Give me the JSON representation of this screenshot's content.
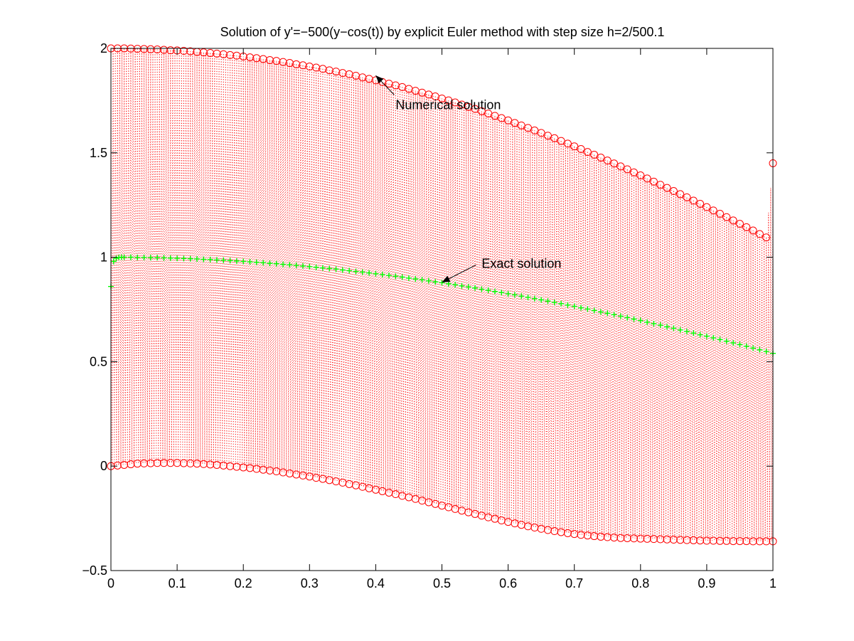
{
  "chart_data": {
    "type": "scatter",
    "title": "Solution of y'=−500(y−cos(t)) by explicit Euler method with step size h=2/500.1",
    "xlabel": "",
    "ylabel": "",
    "xlim": [
      0,
      1
    ],
    "ylim": [
      -0.5,
      2
    ],
    "xticks": [
      0,
      0.1,
      0.2,
      0.3,
      0.4,
      0.5,
      0.6,
      0.7,
      0.8,
      0.9,
      1
    ],
    "xtick_labels": [
      "0",
      "0.1",
      "0.2",
      "0.3",
      "0.4",
      "0.5",
      "0.6",
      "0.7",
      "0.8",
      "0.9",
      "1"
    ],
    "yticks": [
      -0.5,
      0,
      0.5,
      1,
      1.5,
      2
    ],
    "ytick_labels": [
      "−0.5",
      "0",
      "0.5",
      "1",
      "1.5",
      "2"
    ],
    "grid": false,
    "legend": "none",
    "series": [
      {
        "name": "Numerical solution",
        "marker": "circle",
        "line": "dotted",
        "color": "#ff0000",
        "x": [
          0,
          0.01,
          0.02,
          0.03,
          0.04,
          0.05,
          0.06,
          0.07,
          0.08,
          0.09,
          0.1,
          0.11,
          0.12,
          0.13,
          0.14,
          0.15,
          0.16,
          0.17,
          0.18,
          0.19,
          0.2,
          0.21,
          0.22,
          0.23,
          0.24,
          0.25,
          0.26,
          0.27,
          0.28,
          0.29,
          0.3,
          0.31,
          0.32,
          0.33,
          0.34,
          0.35,
          0.36,
          0.37,
          0.38,
          0.39,
          0.4,
          0.41,
          0.42,
          0.43,
          0.44,
          0.45,
          0.46,
          0.47,
          0.48,
          0.49,
          0.5,
          0.51,
          0.52,
          0.53,
          0.54,
          0.55,
          0.56,
          0.57,
          0.58,
          0.59,
          0.6,
          0.61,
          0.62,
          0.63,
          0.64,
          0.65,
          0.66,
          0.67,
          0.68,
          0.69,
          0.7,
          0.71,
          0.72,
          0.73,
          0.74,
          0.75,
          0.76,
          0.77,
          0.78,
          0.79,
          0.8,
          0.81,
          0.82,
          0.83,
          0.84,
          0.85,
          0.86,
          0.87,
          0.88,
          0.89,
          0.9,
          0.91,
          0.92,
          0.93,
          0.94,
          0.95,
          0.96,
          0.97,
          0.98,
          0.99,
          1
        ],
        "upper_y": [
          2,
          2,
          2,
          1.999,
          1.998,
          1.997,
          1.996,
          1.995,
          1.993,
          1.991,
          1.99,
          1.988,
          1.986,
          1.983,
          1.981,
          1.978,
          1.975,
          1.972,
          1.968,
          1.965,
          1.961,
          1.957,
          1.953,
          1.949,
          1.944,
          1.94,
          1.935,
          1.93,
          1.924,
          1.919,
          1.913,
          1.908,
          1.902,
          1.895,
          1.889,
          1.882,
          1.876,
          1.869,
          1.861,
          1.854,
          1.847,
          1.839,
          1.831,
          1.823,
          1.815,
          1.806,
          1.797,
          1.788,
          1.779,
          1.77,
          1.76,
          1.751,
          1.741,
          1.731,
          1.72,
          1.71,
          1.699,
          1.688,
          1.677,
          1.666,
          1.655,
          1.643,
          1.631,
          1.619,
          1.607,
          1.595,
          1.582,
          1.57,
          1.557,
          1.544,
          1.531,
          1.518,
          1.504,
          1.491,
          1.477,
          1.463,
          1.449,
          1.435,
          1.421,
          1.406,
          1.392,
          1.377,
          1.362,
          1.347,
          1.332,
          1.317,
          1.302,
          1.287,
          1.271,
          1.256,
          1.24,
          1.224,
          1.208,
          1.192,
          1.176,
          1.16,
          1.144,
          1.128,
          1.111,
          1.095,
          1.45
        ],
        "lower_y": [
          0,
          0.003,
          0.006,
          0.009,
          0.012,
          0.013,
          0.014,
          0.015,
          0.015,
          0.015,
          0.015,
          0.014,
          0.013,
          0.012,
          0.01,
          0.008,
          0.006,
          0.003,
          0,
          -0.003,
          -0.006,
          -0.009,
          -0.013,
          -0.017,
          -0.021,
          -0.025,
          -0.03,
          -0.035,
          -0.04,
          -0.045,
          -0.05,
          -0.056,
          -0.061,
          -0.067,
          -0.073,
          -0.079,
          -0.086,
          -0.092,
          -0.099,
          -0.106,
          -0.113,
          -0.12,
          -0.127,
          -0.134,
          -0.142,
          -0.149,
          -0.157,
          -0.165,
          -0.173,
          -0.181,
          -0.189,
          -0.197,
          -0.205,
          -0.213,
          -0.221,
          -0.229,
          -0.237,
          -0.245,
          -0.252,
          -0.26,
          -0.267,
          -0.274,
          -0.281,
          -0.288,
          -0.294,
          -0.3,
          -0.306,
          -0.311,
          -0.316,
          -0.321,
          -0.325,
          -0.329,
          -0.332,
          -0.335,
          -0.338,
          -0.34,
          -0.342,
          -0.344,
          -0.345,
          -0.346,
          -0.347,
          -0.348,
          -0.349,
          -0.35,
          -0.351,
          -0.352,
          -0.353,
          -0.354,
          -0.355,
          -0.356,
          -0.357,
          -0.357,
          -0.358,
          -0.358,
          -0.359,
          -0.359,
          -0.359,
          -0.36,
          -0.36,
          -0.36,
          -0.36
        ]
      },
      {
        "name": "Exact solution",
        "marker": "plus",
        "line": "none",
        "color": "#00ff00",
        "x": [
          0,
          0.004,
          0.008,
          0.012,
          0.016,
          0.02,
          0.03,
          0.04,
          0.05,
          0.06,
          0.07,
          0.08,
          0.09,
          0.1,
          0.11,
          0.12,
          0.13,
          0.14,
          0.15,
          0.16,
          0.17,
          0.18,
          0.19,
          0.2,
          0.21,
          0.22,
          0.23,
          0.24,
          0.25,
          0.26,
          0.27,
          0.28,
          0.29,
          0.3,
          0.31,
          0.32,
          0.33,
          0.34,
          0.35,
          0.36,
          0.37,
          0.38,
          0.39,
          0.4,
          0.41,
          0.42,
          0.43,
          0.44,
          0.45,
          0.46,
          0.47,
          0.48,
          0.49,
          0.5,
          0.51,
          0.52,
          0.53,
          0.54,
          0.55,
          0.56,
          0.57,
          0.58,
          0.59,
          0.6,
          0.61,
          0.62,
          0.63,
          0.64,
          0.65,
          0.66,
          0.67,
          0.68,
          0.69,
          0.7,
          0.71,
          0.72,
          0.73,
          0.74,
          0.75,
          0.76,
          0.77,
          0.78,
          0.79,
          0.8,
          0.81,
          0.82,
          0.83,
          0.84,
          0.85,
          0.86,
          0.87,
          0.88,
          0.89,
          0.9,
          0.91,
          0.92,
          0.93,
          0.94,
          0.95,
          0.96,
          0.97,
          0.98,
          0.99,
          1
        ],
        "y": [
          0.86,
          0.98,
          0.995,
          0.999,
          1,
          1,
          1,
          0.999,
          0.999,
          0.998,
          0.998,
          0.997,
          0.996,
          0.995,
          0.994,
          0.993,
          0.992,
          0.99,
          0.989,
          0.987,
          0.986,
          0.984,
          0.982,
          0.98,
          0.978,
          0.976,
          0.974,
          0.971,
          0.969,
          0.966,
          0.964,
          0.961,
          0.958,
          0.955,
          0.952,
          0.949,
          0.946,
          0.943,
          0.939,
          0.936,
          0.932,
          0.929,
          0.925,
          0.921,
          0.917,
          0.913,
          0.909,
          0.905,
          0.9,
          0.896,
          0.892,
          0.887,
          0.882,
          0.878,
          0.873,
          0.868,
          0.863,
          0.858,
          0.853,
          0.847,
          0.842,
          0.836,
          0.831,
          0.825,
          0.82,
          0.814,
          0.808,
          0.802,
          0.796,
          0.79,
          0.784,
          0.778,
          0.771,
          0.765,
          0.758,
          0.752,
          0.745,
          0.738,
          0.732,
          0.725,
          0.718,
          0.711,
          0.704,
          0.697,
          0.689,
          0.682,
          0.675,
          0.667,
          0.66,
          0.652,
          0.645,
          0.637,
          0.629,
          0.622,
          0.614,
          0.606,
          0.598,
          0.59,
          0.582,
          0.574,
          0.565,
          0.557,
          0.549,
          0.54
        ]
      }
    ],
    "annotations": [
      {
        "text": "Numerical solution",
        "arrow_to": [
          0.4,
          1.87
        ],
        "text_at": [
          0.43,
          1.73
        ]
      },
      {
        "text": "Exact solution",
        "arrow_to": [
          0.5,
          0.88
        ],
        "text_at": [
          0.56,
          0.97
        ]
      }
    ]
  }
}
